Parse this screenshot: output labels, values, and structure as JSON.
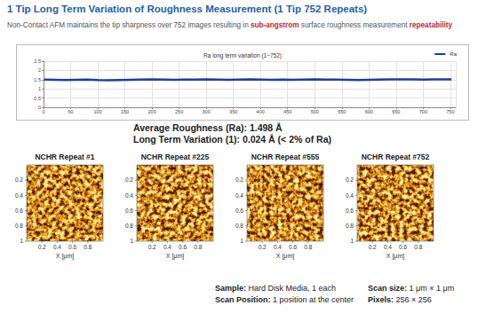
{
  "header": {
    "title": "1 Tip Long Term Variation of Roughness Measurement  (1 Tip 752 Repeats)",
    "subtitle": [
      {
        "text": "Non-Contact AFM maintains the tip sharpness over 752 images resulting in ",
        "highlight": false
      },
      {
        "text": "sub-angstrom",
        "highlight": true
      },
      {
        "text": " surface roughness measurement ",
        "highlight": false
      },
      {
        "text": "repeatability",
        "highlight": true
      }
    ]
  },
  "chart_data": {
    "type": "line",
    "title": "Ra long term variation (1~752)",
    "x": [
      1,
      20,
      40,
      60,
      80,
      100,
      120,
      140,
      160,
      180,
      200,
      220,
      240,
      260,
      280,
      300,
      320,
      340,
      360,
      380,
      400,
      420,
      440,
      460,
      480,
      500,
      520,
      540,
      560,
      580,
      600,
      620,
      640,
      660,
      680,
      700,
      720,
      740,
      752
    ],
    "series": [
      {
        "name": "Ra",
        "color": "#1f3f99",
        "values": [
          1.5,
          1.49,
          1.48,
          1.49,
          1.5,
          1.48,
          1.47,
          1.48,
          1.49,
          1.5,
          1.51,
          1.5,
          1.49,
          1.5,
          1.5,
          1.51,
          1.5,
          1.49,
          1.5,
          1.51,
          1.5,
          1.49,
          1.5,
          1.49,
          1.5,
          1.51,
          1.5,
          1.5,
          1.49,
          1.48,
          1.49,
          1.5,
          1.51,
          1.52,
          1.51,
          1.5,
          1.51,
          1.52,
          1.51
        ]
      }
    ],
    "xlim": [
      0,
      760
    ],
    "xticks": [
      0,
      50,
      100,
      150,
      200,
      250,
      300,
      350,
      400,
      450,
      500,
      550,
      600,
      650,
      700,
      750
    ],
    "ylim": [
      0,
      2.5
    ],
    "yticks": [
      0,
      0.5,
      1,
      1.5,
      2,
      2.5
    ],
    "grid": true,
    "legend": "upper right"
  },
  "stats": [
    {
      "label": "Average Roughness (Ra):",
      "value": "1.498 Å"
    },
    {
      "label": "Long Term Variation (1):",
      "value": "0.024 Å (< 2% of Ra)"
    }
  ],
  "images": {
    "panels": [
      "NCHR Repeat #1",
      "NCHR Repeat #225",
      "NCHR Repeat #555",
      "NCHR Repeat #752"
    ],
    "x_label": "X [μm]",
    "lim": [
      0,
      1
    ],
    "xticks": [
      0.2,
      0.4,
      0.6,
      0.8
    ],
    "yticks": [
      0.2,
      0.4,
      0.6,
      0.8,
      1
    ]
  },
  "footer": {
    "left": [
      {
        "label": "Sample:",
        "text": "Hard Disk Media, 1 each"
      },
      {
        "label": "Scan Position:",
        "text": "1 position at the center"
      }
    ],
    "right": [
      {
        "label": "Scan size:",
        "text": "1 μm × 1 μm"
      },
      {
        "label": "Pixels:",
        "text": "256 × 256"
      }
    ]
  }
}
